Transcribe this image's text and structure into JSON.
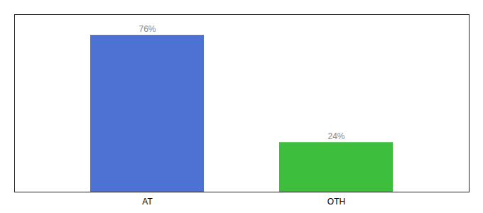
{
  "chart_data": {
    "type": "bar",
    "categories": [
      "AT",
      "OTH"
    ],
    "values": [
      76,
      24
    ],
    "value_labels": [
      "76%",
      "24%"
    ],
    "colors": [
      "#4d72d4",
      "#3dbf3d"
    ],
    "ylim": [
      0,
      86
    ],
    "data_labels": true,
    "tick_labels": "x"
  }
}
